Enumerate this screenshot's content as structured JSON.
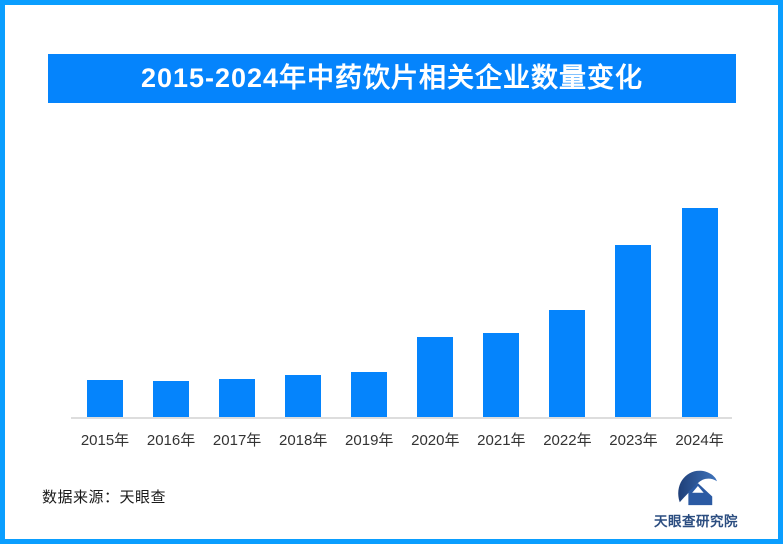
{
  "page": {
    "border_color": "#0A9EFF",
    "background": "#FFFFFF"
  },
  "title_banner": {
    "text": "2015-2024年中药饮片相关企业数量变化",
    "background": "#0584FC",
    "text_color": "#FFFFFF"
  },
  "chart_data": {
    "type": "bar",
    "title": "2015-2024年中药饮片相关企业数量变化",
    "categories": [
      "2015年",
      "2016年",
      "2017年",
      "2018年",
      "2019年",
      "2020年",
      "2021年",
      "2022年",
      "2023年",
      "2024年"
    ],
    "values": [
      37,
      36,
      38,
      42,
      45,
      80,
      84,
      107,
      172,
      209
    ],
    "values_note": "no numeric axis or data labels shown; values are relative bar heights",
    "ylim": [
      0,
      230
    ],
    "xlabel": "",
    "ylabel": "",
    "grid": false,
    "legend": false,
    "bar_color": "#0584FC",
    "axis_line_color": "#DDDDDD",
    "tick_label_color": "#333333"
  },
  "footer": {
    "source_text": "数据来源：天眼查",
    "logo": {
      "icon": "tianyancha-eagle-icon",
      "text": "天眼查研究院",
      "text_color": "#2B4D80"
    }
  }
}
